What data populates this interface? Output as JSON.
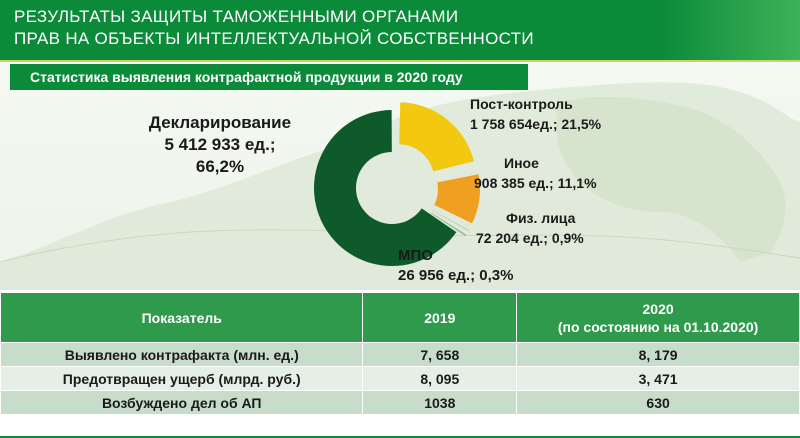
{
  "header": {
    "title": "РЕЗУЛЬТАТЫ ЗАЩИТЫ  ТАМОЖЕННЫМИ ОРГАНАМИ\nПРАВ НА  ОБЪЕКТЫ  ИНТЕЛЛЕКТУАЛЬНОЙ СОБСТВЕННОСТИ"
  },
  "banner": "Статистика выявления контрафактной продукции в 2020 году",
  "colors": {
    "brand_green": "#0b8a3a",
    "declaration": "#0f5a2a",
    "post_control": "#f2c811",
    "other": "#f0a020",
    "phys": "#2e8b57",
    "mpo": "#8fbf8f"
  },
  "chart_data": {
    "type": "pie",
    "title": "Статистика выявления контрафактной продукции в 2020 году",
    "slices": [
      {
        "label": "Декларирование",
        "value": 5412933,
        "value_text": "5 412 933 ед.;",
        "percent": 66.2,
        "percent_text": "66,2%"
      },
      {
        "label": "Пост-контроль",
        "value": 1758654,
        "value_text": "1 758 654ед.; 21,5%",
        "percent": 21.5
      },
      {
        "label": "Иное",
        "value": 908385,
        "value_text": "908 385 ед.; 11,1%",
        "percent": 11.1
      },
      {
        "label": "Физ. лица",
        "value": 72204,
        "value_text": "72 204 ед.; 0,9%",
        "percent": 0.9
      },
      {
        "label": "МПО",
        "value": 26956,
        "value_text": "26 956 ед.; 0,3%",
        "percent": 0.3
      }
    ]
  },
  "table": {
    "headers": [
      "Показатель",
      "2019",
      "2020",
      "(по состоянию на 01.10.2020)"
    ],
    "rows": [
      [
        "Выявлено контрафакта (млн. ед.)",
        "7, 658",
        "8, 179"
      ],
      [
        "Предотвращен ущерб (млрд. руб.)",
        "8, 095",
        "3, 471"
      ],
      [
        "Возбуждено дел об АП",
        "1038",
        "630"
      ]
    ]
  }
}
